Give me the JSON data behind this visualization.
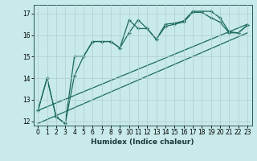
{
  "title": "",
  "xlabel": "Humidex (Indice chaleur)",
  "background_color": "#c8eaea",
  "grid_color": "#b0cccc",
  "line_color": "#1a6b5a",
  "xlim": [
    -0.5,
    23.5
  ],
  "ylim": [
    11.8,
    17.4
  ],
  "xticks": [
    0,
    1,
    2,
    3,
    4,
    5,
    6,
    7,
    8,
    9,
    10,
    11,
    12,
    13,
    14,
    15,
    16,
    17,
    18,
    19,
    20,
    21,
    22,
    23
  ],
  "yticks": [
    12,
    13,
    14,
    15,
    16,
    17
  ],
  "curve1_x": [
    0,
    1,
    2,
    3,
    4,
    5,
    6,
    7,
    8,
    9,
    10,
    11,
    12,
    13,
    14,
    15,
    16,
    17,
    18,
    19,
    20,
    21,
    22,
    23
  ],
  "curve1_y": [
    12.5,
    14.0,
    12.2,
    11.9,
    15.0,
    15.0,
    15.7,
    15.7,
    15.7,
    15.4,
    16.7,
    16.3,
    16.3,
    15.8,
    16.5,
    16.55,
    16.65,
    17.1,
    17.1,
    17.1,
    16.8,
    16.15,
    16.1,
    16.45
  ],
  "curve2_x": [
    0,
    1,
    2,
    3,
    4,
    5,
    6,
    7,
    8,
    9,
    10,
    11,
    12,
    13,
    14,
    15,
    16,
    17,
    18,
    19,
    20,
    21,
    22,
    23
  ],
  "curve2_y": [
    12.5,
    14.0,
    12.2,
    11.9,
    14.1,
    15.0,
    15.7,
    15.7,
    15.7,
    15.4,
    16.1,
    16.7,
    16.3,
    15.8,
    16.4,
    16.5,
    16.6,
    17.05,
    17.05,
    16.8,
    16.6,
    16.1,
    16.1,
    16.45
  ],
  "trend1_x": [
    0,
    23
  ],
  "trend1_y": [
    12.5,
    16.5
  ],
  "trend2_x": [
    0,
    23
  ],
  "trend2_y": [
    11.9,
    16.1
  ]
}
